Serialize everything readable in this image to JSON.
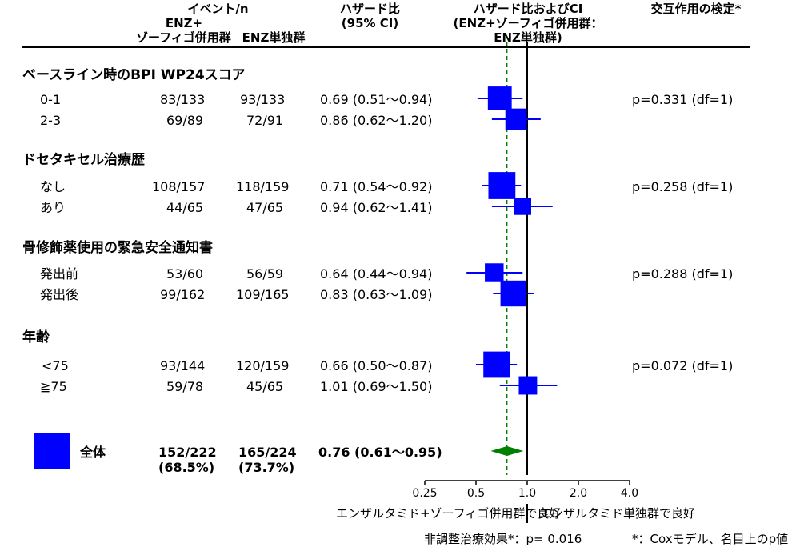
{
  "header": {
    "events": "イベント/n",
    "enz_combo": "ENZ+",
    "enz_combo_2": "ゾーフィゴ併用群",
    "enz_alone": "ENZ単独群",
    "hr": "ハザード比",
    "hr_ci": "(95% CI)",
    "forest_1": "ハザード比およびCI",
    "forest_2": "(ENZ+ゾーフィゴ併用群：",
    "forest_3": "ENZ単独群)",
    "interaction": "交互作用の検定*"
  },
  "sections": [
    {
      "title": "ベースライン時のBPI WP24スコア"
    },
    {
      "title": "ドセタキセル治療歴"
    },
    {
      "title": "骨修飾薬使用の緊急安全通知書"
    },
    {
      "title": "年齢"
    }
  ],
  "rows": [
    {
      "label": "0-1",
      "combo": "83/133",
      "alone": "93/133",
      "hr_text": "0.69 (0.51～0.94)"
    },
    {
      "label": "2-3",
      "combo": "69/89",
      "alone": "72/91",
      "hr_text": "0.86 (0.62～1.20)"
    },
    {
      "label": "なし",
      "combo": "108/157",
      "alone": "118/159",
      "hr_text": "0.71 (0.54～0.92)"
    },
    {
      "label": "あり",
      "combo": "44/65",
      "alone": "47/65",
      "hr_text": "0.94 (0.62～1.41)"
    },
    {
      "label": "発出前",
      "combo": "53/60",
      "alone": "56/59",
      "hr_text": "0.64 (0.44～0.94)"
    },
    {
      "label": "発出後",
      "combo": "99/162",
      "alone": "109/165",
      "hr_text": "0.83 (0.63～1.09)"
    },
    {
      "label": "<75",
      "combo": "93/144",
      "alone": "120/159",
      "hr_text": "0.66 (0.50～0.87)"
    },
    {
      "label": "≧75",
      "combo": "59/78",
      "alone": "45/65",
      "hr_text": "1.01 (0.69～1.50)"
    }
  ],
  "interactions": [
    "p=0.331 (df=1)",
    "p=0.258 (df=1)",
    "p=0.288 (df=1)",
    "p=0.072 (df=1)"
  ],
  "overall": {
    "label": "全体",
    "combo": "152/222",
    "combo_pct": "(68.5%)",
    "alone": "165/224",
    "alone_pct": "(73.7%)",
    "hr_text": "0.76 (0.61～0.95)"
  },
  "footer": {
    "favors_combo": "エンザルタミド+ゾーフィゴ併用群で良好",
    "favors_alone": "エンザルタミド単独群で良好",
    "unadjusted": "非調整治療効果*：p= 0.016",
    "note": "*：Coxモデル、名目上のp値"
  },
  "chart_data": {
    "type": "forest",
    "x_scale": "log",
    "xlim": [
      0.25,
      4.0
    ],
    "x_ticks": [
      0.25,
      0.5,
      1.0,
      2.0,
      4.0
    ],
    "tick_labels": [
      "0.25",
      "0.5",
      "1.0",
      "2.0",
      "4.0"
    ],
    "reference_line": 1.0,
    "overall_line": 0.76,
    "points": [
      {
        "hr": 0.69,
        "lo": 0.51,
        "hi": 0.94,
        "weight": 176
      },
      {
        "hr": 0.86,
        "lo": 0.62,
        "hi": 1.2,
        "weight": 141
      },
      {
        "hr": 0.71,
        "lo": 0.54,
        "hi": 0.92,
        "weight": 226
      },
      {
        "hr": 0.94,
        "lo": 0.62,
        "hi": 1.41,
        "weight": 91
      },
      {
        "hr": 0.64,
        "lo": 0.44,
        "hi": 0.94,
        "weight": 109
      },
      {
        "hr": 0.83,
        "lo": 0.63,
        "hi": 1.09,
        "weight": 208
      },
      {
        "hr": 0.66,
        "lo": 0.5,
        "hi": 0.87,
        "weight": 213
      },
      {
        "hr": 1.01,
        "lo": 0.69,
        "hi": 1.5,
        "weight": 104
      }
    ],
    "overall": {
      "hr": 0.76,
      "lo": 0.61,
      "hi": 0.95,
      "weight": 317
    },
    "colors": {
      "marker": "#0000ff",
      "overall_diamond": "#008000",
      "overall_line": "#008000",
      "axis": "#000000"
    }
  }
}
